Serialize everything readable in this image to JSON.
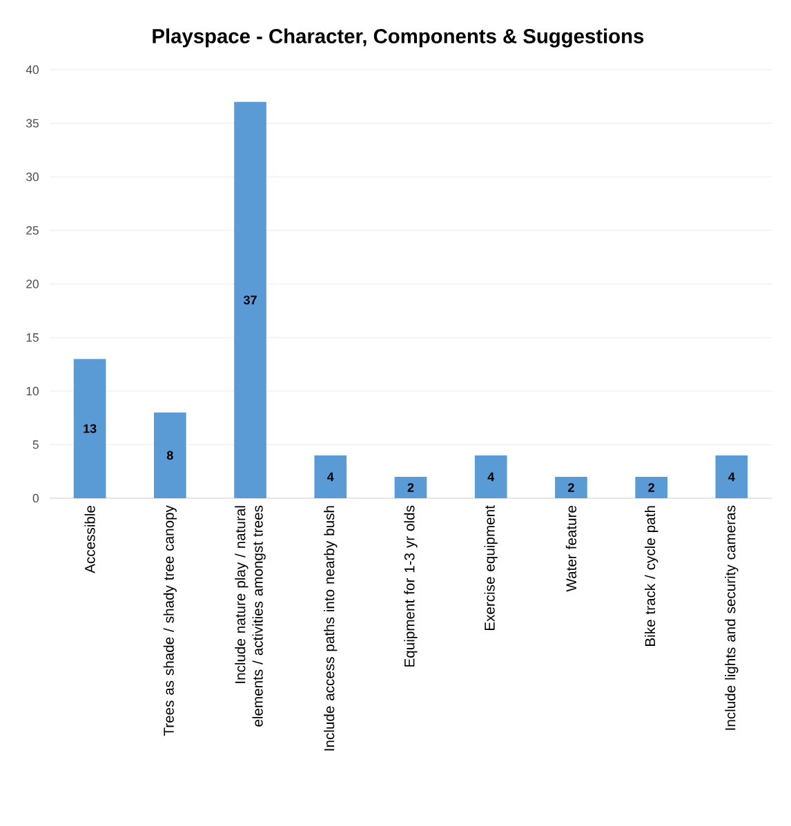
{
  "chart_data": {
    "type": "bar",
    "title": "Playspace - Character, Components & Suggestions",
    "categories": [
      "Accessible",
      "Trees as shade / shady tree canopy",
      "Include nature play / natural elements /  activities amongst  trees",
      "Include access paths into nearby bush",
      "Equipment for 1-3 yr olds",
      "Exercise equipment",
      "Water feature",
      "Bike track / cycle path",
      "Include lights and security cameras"
    ],
    "values": [
      13,
      8,
      37,
      4,
      2,
      4,
      2,
      2,
      4
    ],
    "color": "#5b9bd5",
    "ylim": [
      0,
      40
    ],
    "yticks": [
      0,
      5,
      10,
      15,
      20,
      25,
      30,
      35,
      40
    ],
    "grid": "y",
    "data_labels": true
  }
}
